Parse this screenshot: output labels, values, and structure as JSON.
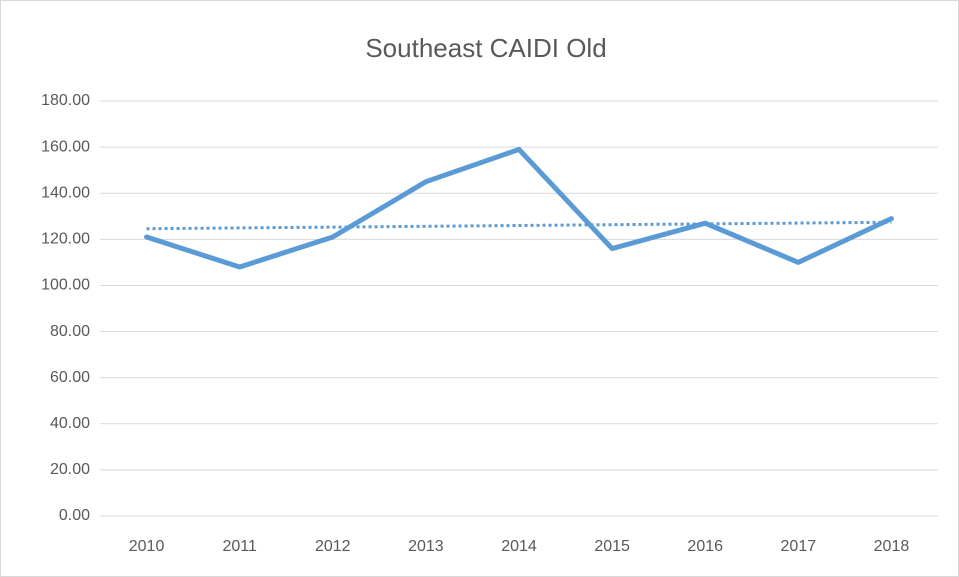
{
  "chart_data": {
    "type": "line",
    "title": "Southeast CAIDI Old",
    "categories": [
      "2010",
      "2011",
      "2012",
      "2013",
      "2014",
      "2015",
      "2016",
      "2017",
      "2018"
    ],
    "series": [
      {
        "name": "Southeast CAIDI Old",
        "color": "#5b9bd5",
        "values": [
          121,
          108,
          121,
          145,
          159,
          116,
          127,
          110,
          129
        ]
      }
    ],
    "trendline": {
      "kind": "linear",
      "color": "#5b9bd5",
      "dash": "dotted",
      "values": [
        124.6,
        127.4
      ]
    },
    "ylim": [
      0,
      180
    ],
    "yticks": [
      {
        "value": 0,
        "label": "0.00"
      },
      {
        "value": 20,
        "label": "20.00"
      },
      {
        "value": 40,
        "label": "40.00"
      },
      {
        "value": 60,
        "label": "60.00"
      },
      {
        "value": 80,
        "label": "80.00"
      },
      {
        "value": 100,
        "label": "100.00"
      },
      {
        "value": 120,
        "label": "120.00"
      },
      {
        "value": 140,
        "label": "140.00"
      },
      {
        "value": 160,
        "label": "160.00"
      },
      {
        "value": 180,
        "label": "180.00"
      }
    ],
    "grid": true
  }
}
